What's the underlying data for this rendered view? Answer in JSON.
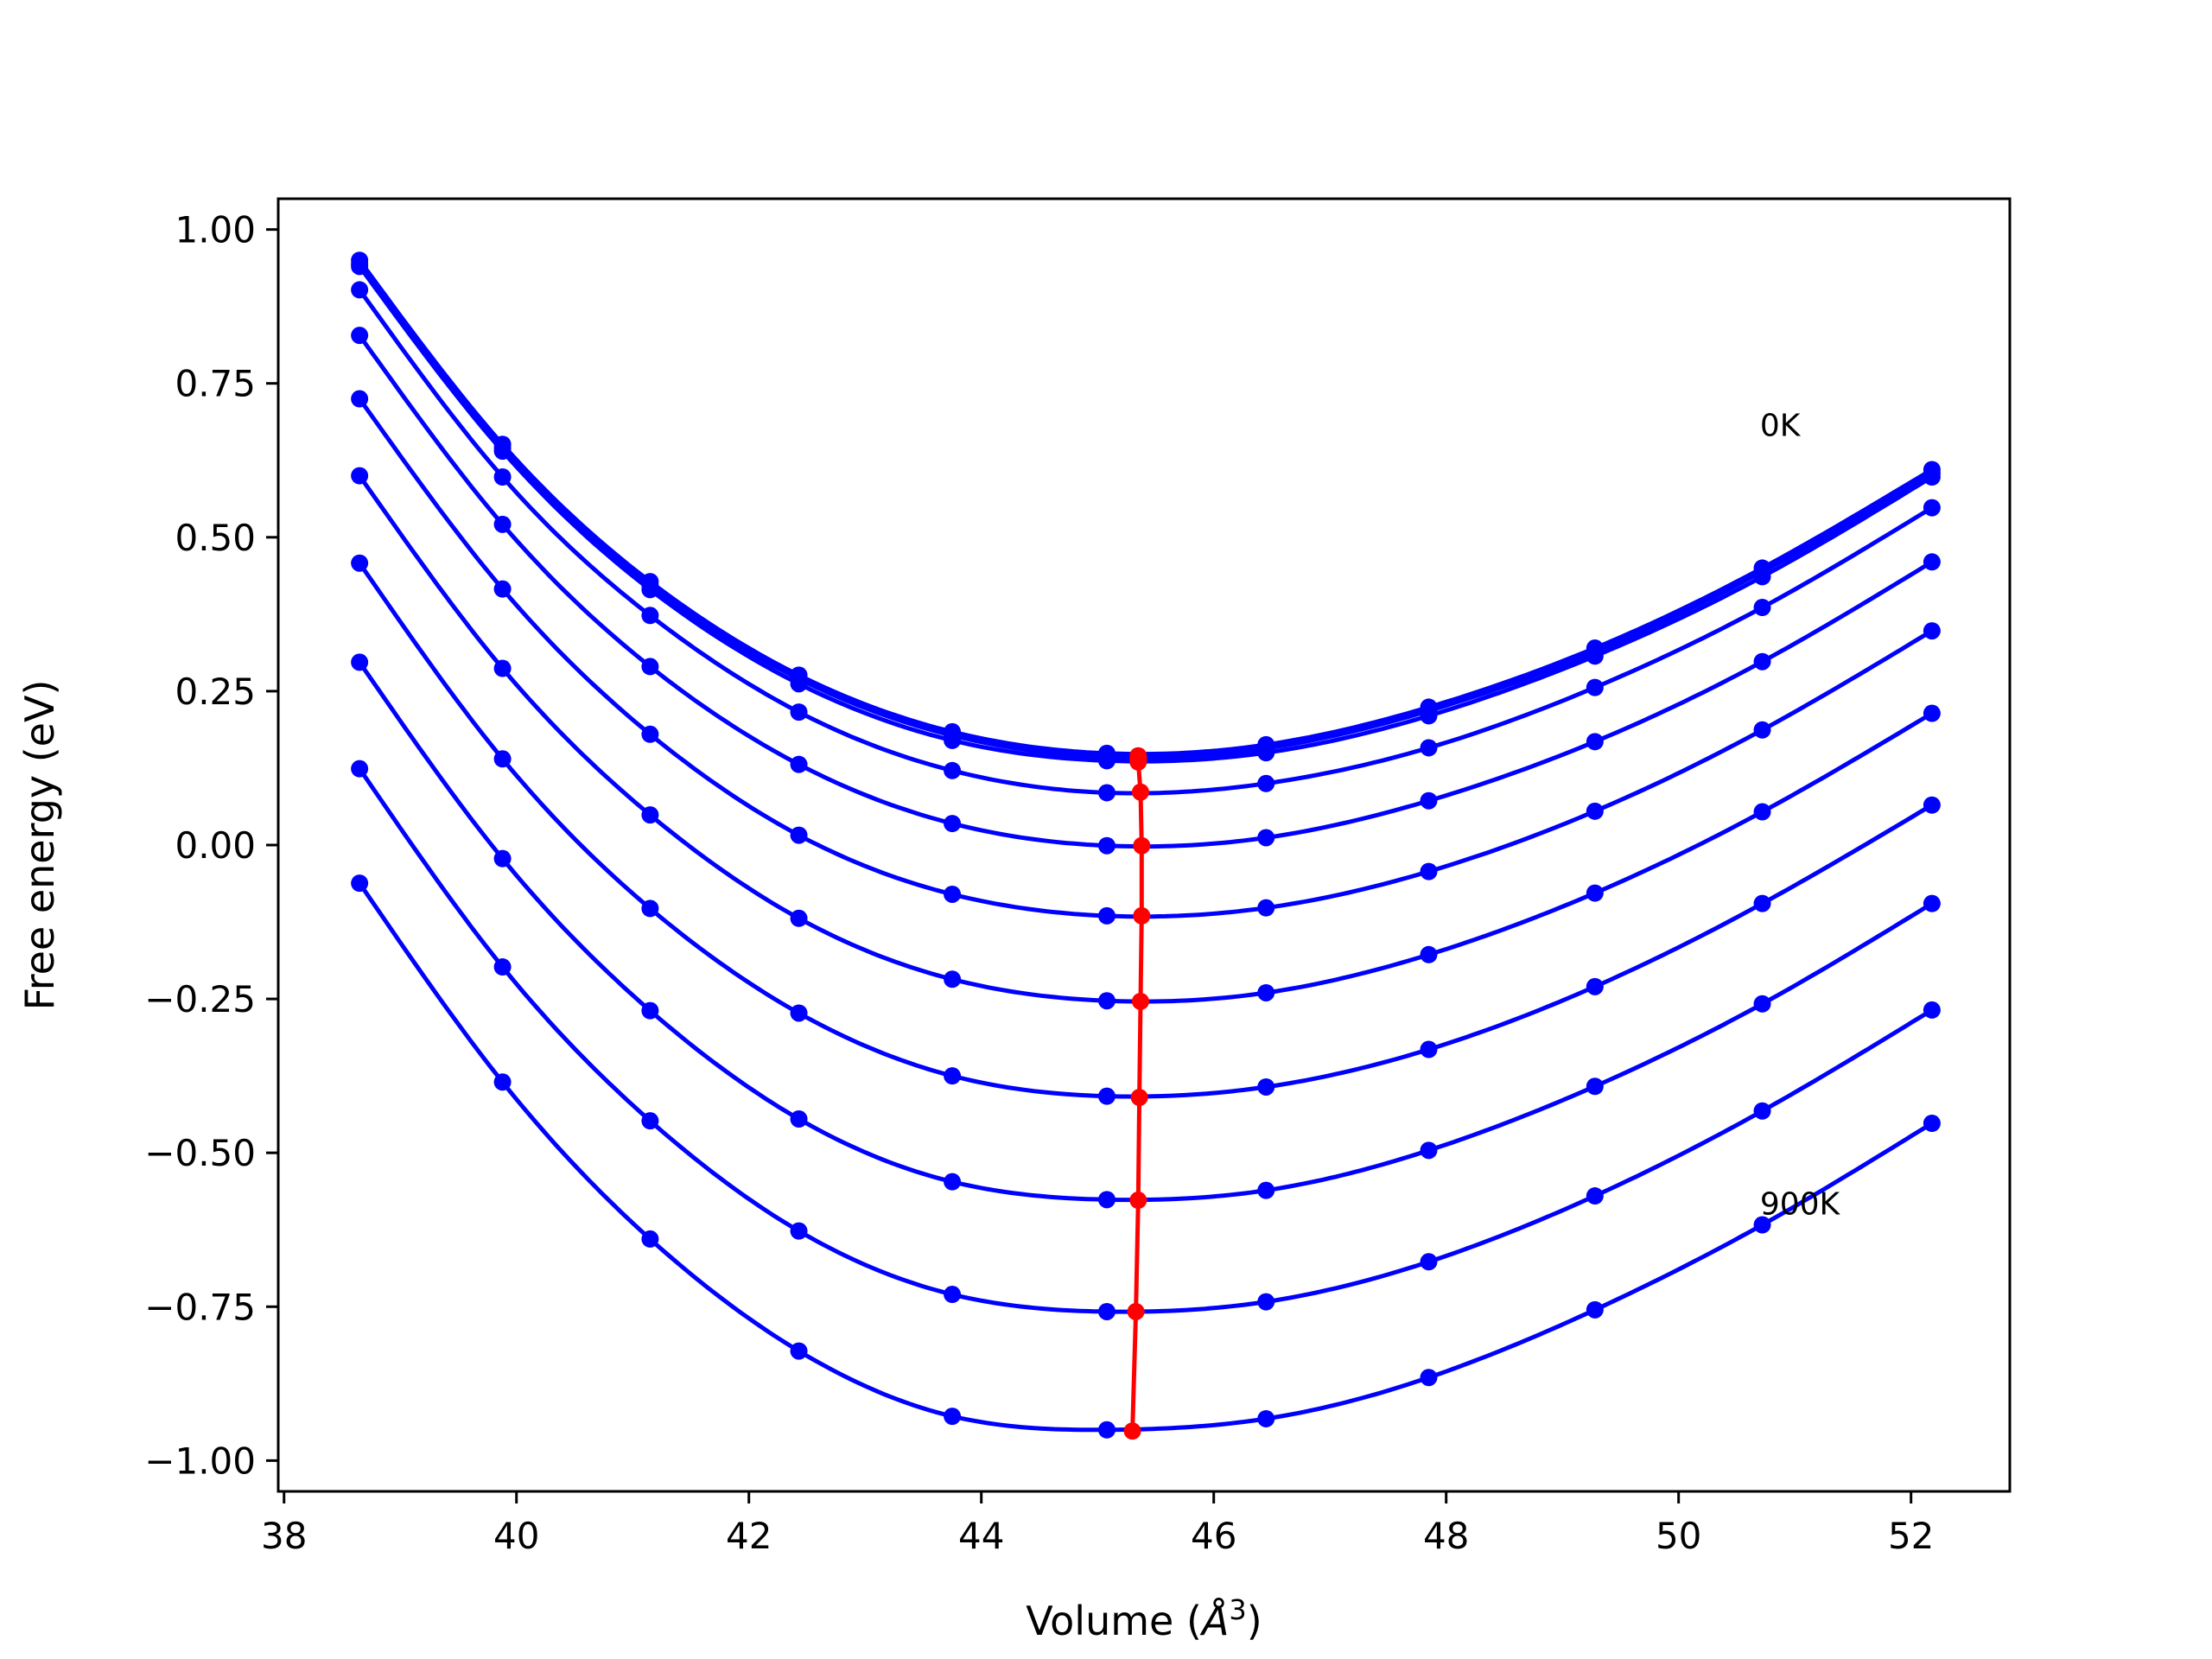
{
  "chart_data": {
    "type": "line",
    "xlabel": "Volume",
    "xlabel_unit_base": "Å",
    "xlabel_unit_exp": "3",
    "ylabel": "Free energy (eV)",
    "xlim": [
      37.95,
      52.85
    ],
    "ylim": [
      -1.05,
      1.05
    ],
    "xticks": [
      38,
      40,
      42,
      44,
      46,
      48,
      50,
      52
    ],
    "xtick_labels": [
      "38",
      "40",
      "42",
      "44",
      "46",
      "48",
      "50",
      "52"
    ],
    "yticks": [
      1.0,
      0.75,
      0.5,
      0.25,
      0.0,
      -0.25,
      -0.5,
      -0.75,
      -1.0
    ],
    "ytick_labels": [
      "1.00",
      "0.75",
      "0.50",
      "0.25",
      "0.00",
      "−0.25",
      "−0.50",
      "−0.75",
      "−1.00"
    ],
    "x": [
      38.65,
      39.88,
      41.15,
      42.43,
      43.75,
      45.08,
      46.45,
      47.85,
      49.28,
      50.72,
      52.18
    ],
    "curve_color": "#0000ff",
    "min_line_color": "#ff0000",
    "series": [
      {
        "values": [
          0.95,
          0.651,
          0.428,
          0.276,
          0.184,
          0.149,
          0.163,
          0.224,
          0.32,
          0.45,
          0.61
        ],
        "min_v": 45.35,
        "min_f": 0.145
      },
      {
        "values": [
          0.944,
          0.645,
          0.422,
          0.27,
          0.178,
          0.143,
          0.157,
          0.218,
          0.314,
          0.444,
          0.604
        ],
        "min_v": 45.35,
        "min_f": 0.14
      },
      {
        "values": [
          0.94,
          0.64,
          0.415,
          0.262,
          0.17,
          0.137,
          0.15,
          0.21,
          0.307,
          0.436,
          0.598
        ],
        "min_v": 45.35,
        "min_f": 0.135
      },
      {
        "values": [
          0.902,
          0.598,
          0.373,
          0.216,
          0.121,
          0.085,
          0.1,
          0.158,
          0.256,
          0.386,
          0.548
        ],
        "min_v": 45.37,
        "min_f": 0.086
      },
      {
        "values": [
          0.828,
          0.521,
          0.29,
          0.131,
          0.035,
          -0.001,
          0.012,
          0.072,
          0.168,
          0.298,
          0.46
        ],
        "min_v": 45.38,
        "min_f": -0.001
      },
      {
        "values": [
          0.725,
          0.416,
          0.18,
          0.016,
          -0.08,
          -0.115,
          -0.102,
          -0.043,
          0.055,
          0.187,
          0.348
        ],
        "min_v": 45.38,
        "min_f": -0.115
      },
      {
        "values": [
          0.6,
          0.287,
          0.049,
          -0.119,
          -0.218,
          -0.253,
          -0.24,
          -0.178,
          -0.078,
          0.054,
          0.214
        ],
        "min_v": 45.37,
        "min_f": -0.254
      },
      {
        "values": [
          0.458,
          0.14,
          -0.103,
          -0.273,
          -0.375,
          -0.408,
          -0.393,
          -0.332,
          -0.23,
          -0.095,
          0.065
        ],
        "min_v": 45.36,
        "min_f": -0.41
      },
      {
        "values": [
          0.297,
          -0.022,
          -0.269,
          -0.445,
          -0.547,
          -0.576,
          -0.561,
          -0.496,
          -0.392,
          -0.258,
          -0.095
        ],
        "min_v": 45.35,
        "min_f": -0.577
      },
      {
        "values": [
          0.124,
          -0.198,
          -0.448,
          -0.627,
          -0.73,
          -0.758,
          -0.742,
          -0.677,
          -0.57,
          -0.432,
          -0.268
        ],
        "min_v": 45.33,
        "min_f": -0.758
      },
      {
        "values": [
          -0.062,
          -0.385,
          -0.64,
          -0.822,
          -0.928,
          -0.95,
          -0.932,
          -0.865,
          -0.755,
          -0.617,
          -0.452
        ],
        "min_v": 45.3,
        "min_f": -0.952
      }
    ],
    "annotations": [
      {
        "text": "0K",
        "x": 50.7,
        "y": 0.665
      },
      {
        "text": "900K",
        "x": 50.7,
        "y": -0.6
      }
    ]
  }
}
